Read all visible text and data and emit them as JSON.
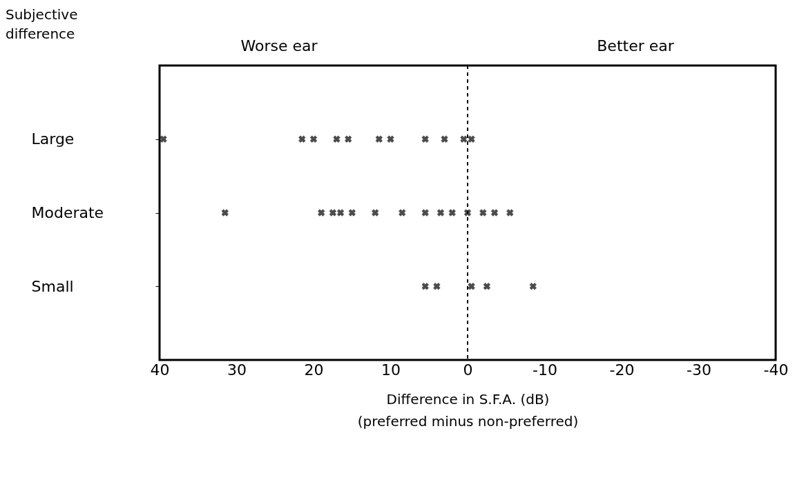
{
  "chart_data": {
    "type": "scatter",
    "orientation": "horizontal",
    "ylabel": "Subjective\ndifference",
    "xlabel": "Difference in S.F.A. (dB)\n(preferred minus non-preferred)",
    "annotations": [
      "Worse ear",
      "Better ear"
    ],
    "categories": [
      "Large",
      "Moderate",
      "Small"
    ],
    "xlim": [
      40,
      -40
    ],
    "xticks": [
      40,
      30,
      20,
      10,
      0,
      -10,
      -20,
      -30,
      -40
    ],
    "marker": "cross",
    "grid": false,
    "ref_lines": [
      {
        "axis": "x",
        "value": 0,
        "line_style": "dashed",
        "color": "#000000"
      }
    ],
    "series": [
      {
        "color": "#000000",
        "x": [
          "Large",
          "Large",
          "Large",
          "Large",
          "Large",
          "Large",
          "Large",
          "Large",
          "Large",
          "Large",
          "Large",
          "Moderate",
          "Moderate",
          "Moderate",
          "Moderate",
          "Moderate",
          "Moderate",
          "Moderate",
          "Moderate",
          "Moderate",
          "Moderate",
          "Moderate",
          "Moderate",
          "Moderate",
          "Moderate",
          "Small",
          "Small",
          "Small",
          "Small",
          "Small"
        ],
        "values": [
          39.5,
          21.5,
          20,
          17,
          15.5,
          11.5,
          10,
          5.5,
          3,
          0.5,
          -0.5,
          31.5,
          19,
          17.5,
          16.5,
          15,
          12,
          8.5,
          5.5,
          3.5,
          2,
          0,
          -2,
          -3.5,
          -5.5,
          5.5,
          4,
          -0.5,
          -2.5,
          -8.5
        ]
      }
    ]
  }
}
